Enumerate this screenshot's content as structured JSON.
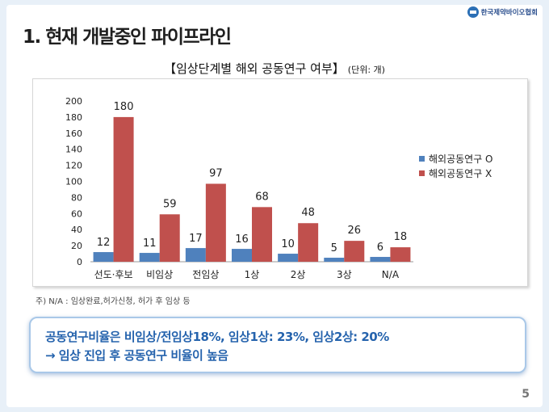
{
  "header": {
    "title": "1. 현재 개발중인 파이프라인",
    "logo_text": "한국제약바이오협회"
  },
  "chart_title": "【임상단계별 해외 공동연구 여부】",
  "chart_unit": "(단위: 개)",
  "chart_data": {
    "type": "bar",
    "categories": [
      "선도·후보",
      "비임상",
      "전임상",
      "1상",
      "2상",
      "3상",
      "N/A"
    ],
    "series": [
      {
        "name": "해외공동연구 O",
        "values": [
          12,
          11,
          17,
          16,
          10,
          5,
          6
        ],
        "color": "#4f81bd"
      },
      {
        "name": "해외공동연구 X",
        "values": [
          180,
          59,
          97,
          68,
          48,
          26,
          18
        ],
        "color": "#c0504d"
      }
    ],
    "ylim": [
      0,
      200
    ],
    "yticks": [
      0,
      20,
      40,
      60,
      80,
      100,
      120,
      140,
      160,
      180,
      200
    ],
    "legend": "right",
    "grid": false,
    "data_labels": true
  },
  "footnote": "주) N/A : 임상완료,허가신청, 허가 후 임상 등",
  "summary": {
    "line1": "공동연구비율은 비임상/전임상18%, 임상1상: 23%, 임상2상: 20%",
    "line2": "→ 임상 진입 후 공동연구 비율이 높음"
  },
  "page_number": "5"
}
